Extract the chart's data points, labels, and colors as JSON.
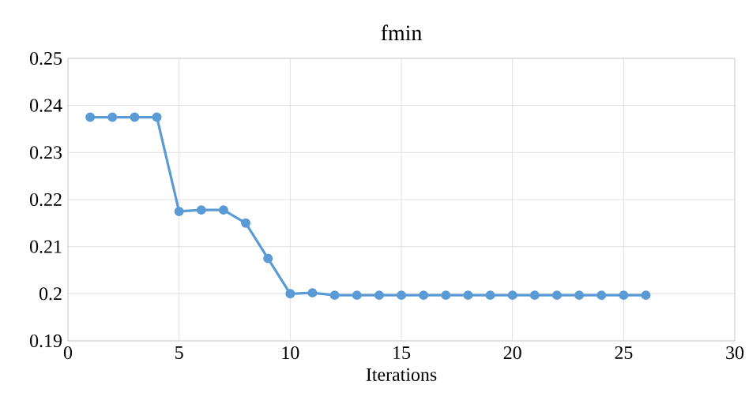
{
  "chart_data": {
    "type": "line",
    "title": "fmin",
    "xlabel": "Iterations",
    "series": [
      {
        "color": "#5b9bd5",
        "x": [
          1,
          2,
          3,
          4,
          5,
          6,
          7,
          8,
          9,
          10,
          11,
          12,
          13,
          14,
          15,
          16,
          17,
          18,
          19,
          20,
          21,
          22,
          23,
          24,
          25,
          26
        ],
        "values": [
          0.2375,
          0.2375,
          0.2375,
          0.2375,
          0.2175,
          0.2178,
          0.2178,
          0.215,
          0.2075,
          0.2,
          0.2002,
          0.1997,
          0.1997,
          0.1997,
          0.1997,
          0.1997,
          0.1997,
          0.1997,
          0.1997,
          0.1997,
          0.1997,
          0.1997,
          0.1997,
          0.1997,
          0.1997,
          0.1997
        ]
      }
    ],
    "xlim": [
      0,
      30
    ],
    "xticks": [
      0,
      5,
      10,
      15,
      20,
      25,
      30
    ],
    "ylim": [
      0.19,
      0.25
    ],
    "yticks": [
      0.19,
      0.2,
      0.21,
      0.22,
      0.23,
      0.24,
      0.25
    ],
    "grid": true,
    "marker": "circle",
    "line_style": "solid"
  }
}
